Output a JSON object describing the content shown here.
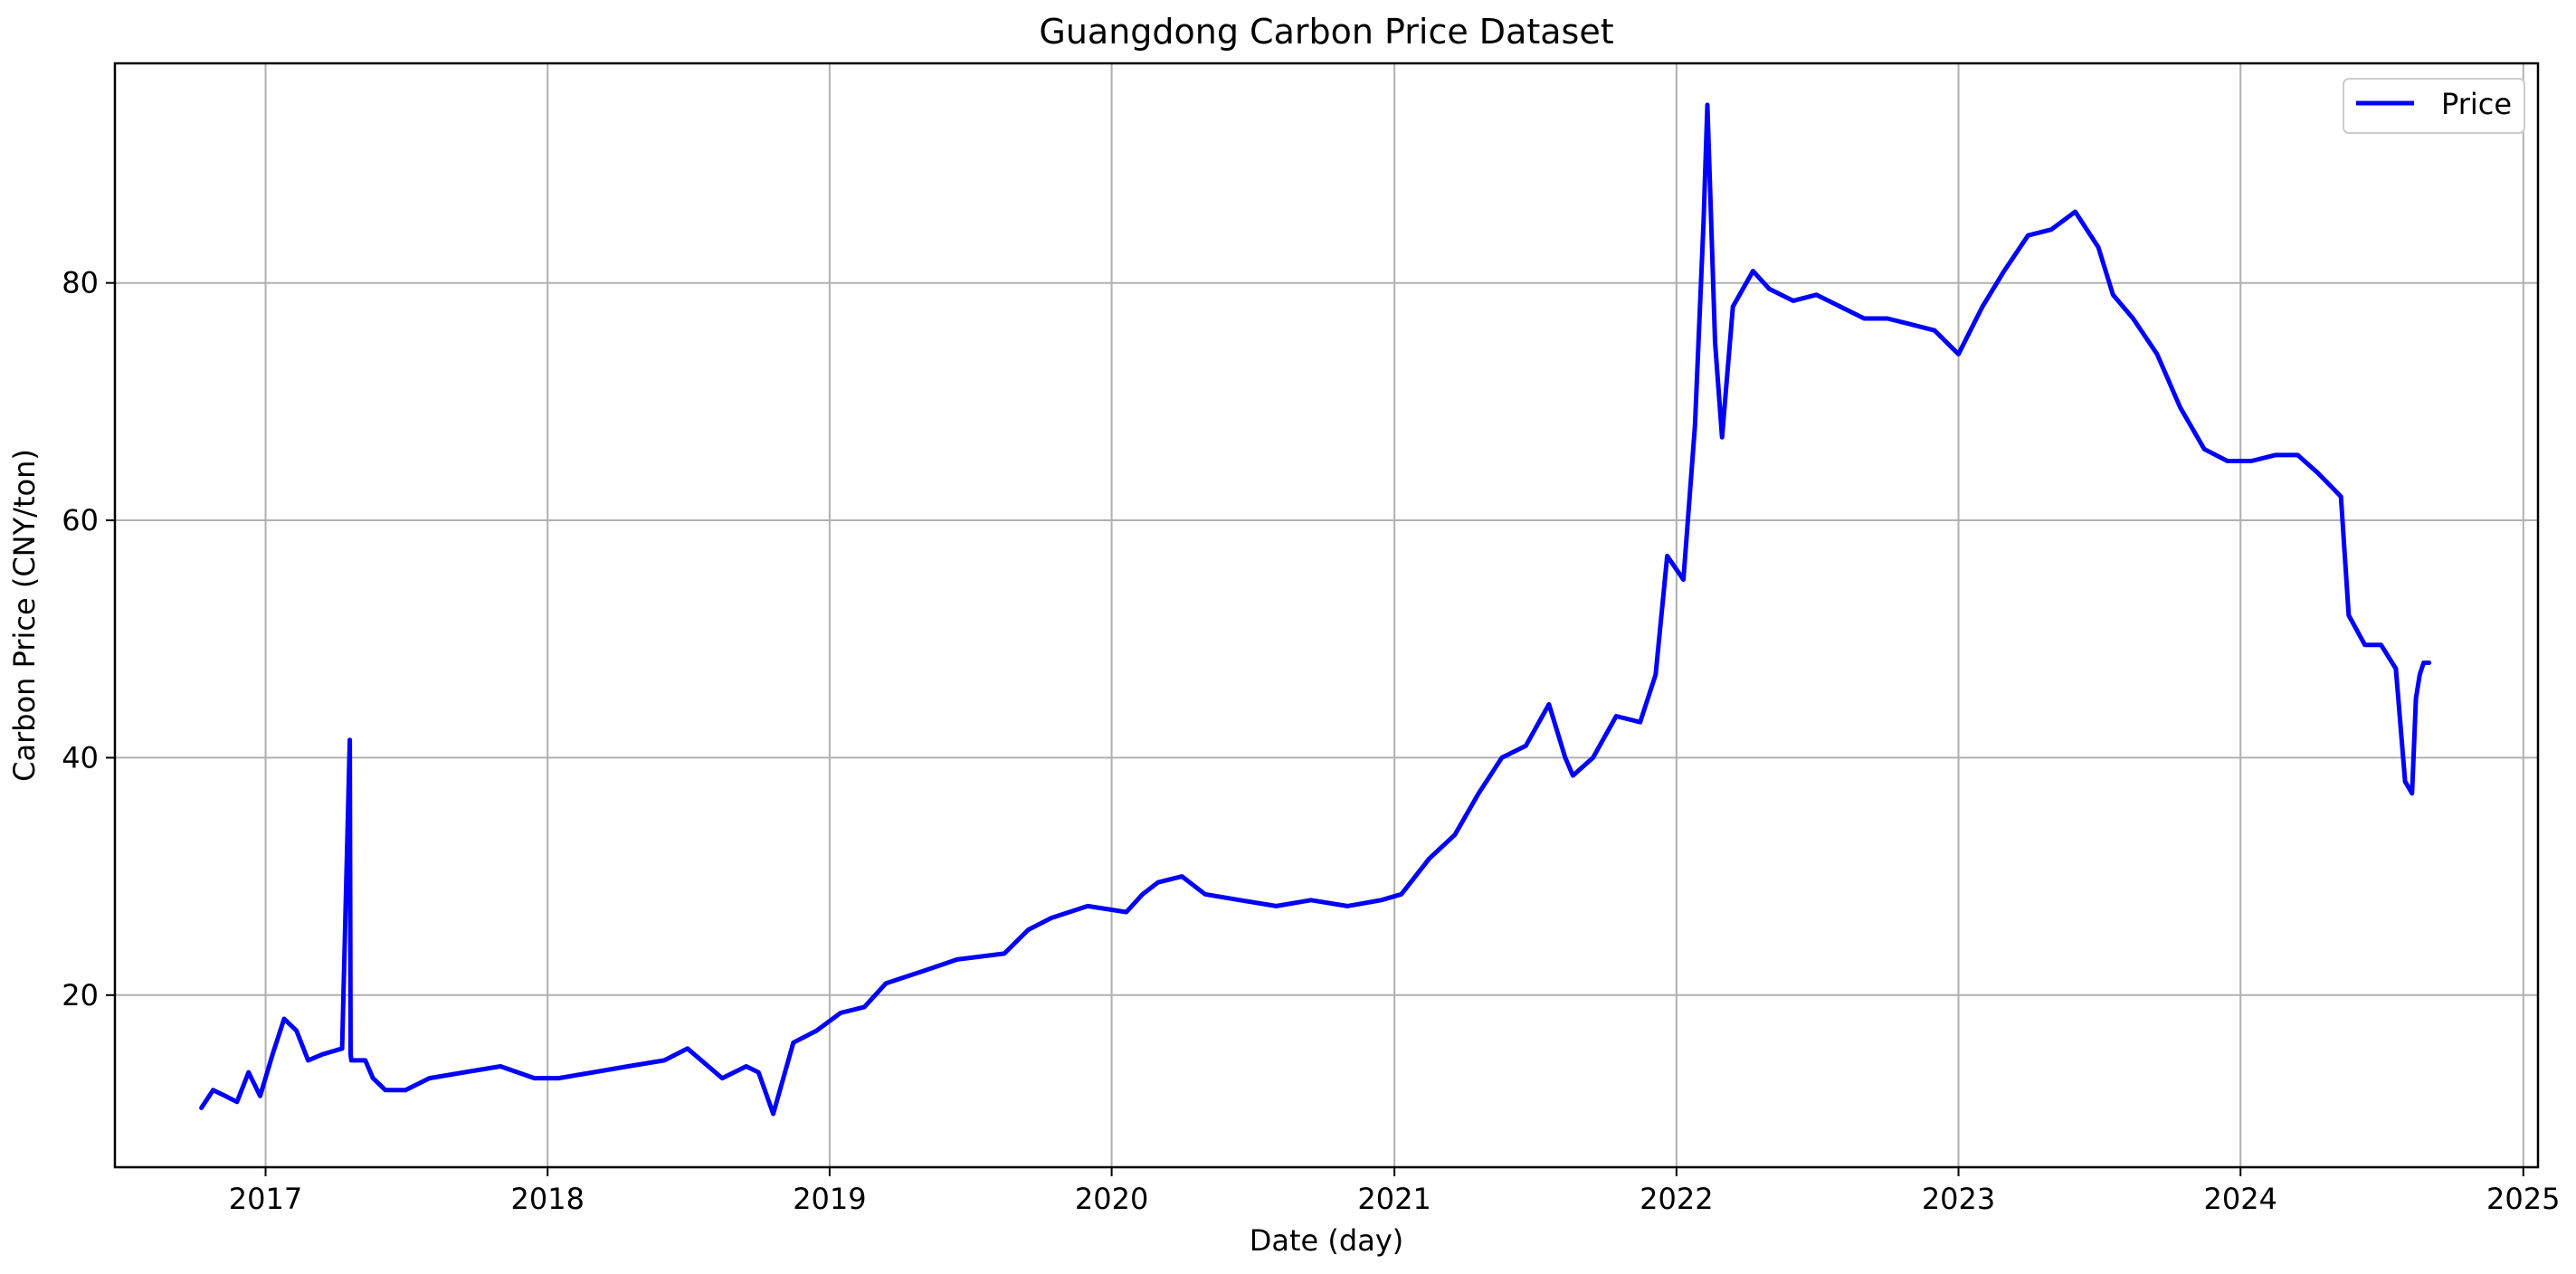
{
  "chart_data": {
    "type": "line",
    "title": "Guangdong Carbon Price Dataset",
    "xlabel": "Date (day)",
    "ylabel": "Carbon Price (CNY/ton)",
    "xlim": [
      "2016-06-20",
      "2025-01-20"
    ],
    "ylim": [
      5.5,
      98.5
    ],
    "x_ticks": [
      "2017",
      "2018",
      "2019",
      "2020",
      "2021",
      "2022",
      "2023",
      "2024",
      "2025"
    ],
    "y_ticks": [
      20,
      40,
      60,
      80
    ],
    "grid": true,
    "legend_position": "top-right",
    "line_color": "#0000ff",
    "series": [
      {
        "name": "Price",
        "x": [
          "2016-10-10",
          "2016-10-25",
          "2016-11-10",
          "2016-11-25",
          "2016-12-10",
          "2016-12-25",
          "2017-01-10",
          "2017-01-25",
          "2017-02-10",
          "2017-02-25",
          "2017-03-15",
          "2017-04-10",
          "2017-04-20",
          "2017-04-21",
          "2017-04-22",
          "2017-05-10",
          "2017-05-20",
          "2017-06-05",
          "2017-07-01",
          "2017-08-01",
          "2017-09-15",
          "2017-11-01",
          "2017-12-15",
          "2018-01-15",
          "2018-03-01",
          "2018-04-15",
          "2018-06-01",
          "2018-07-01",
          "2018-08-15",
          "2018-09-15",
          "2018-10-01",
          "2018-10-20",
          "2018-11-15",
          "2018-12-15",
          "2019-01-15",
          "2019-02-15",
          "2019-03-15",
          "2019-05-01",
          "2019-06-15",
          "2019-08-15",
          "2019-09-15",
          "2019-10-15",
          "2019-12-01",
          "2020-01-20",
          "2020-02-10",
          "2020-03-01",
          "2020-04-01",
          "2020-05-01",
          "2020-06-15",
          "2020-08-01",
          "2020-09-15",
          "2020-11-01",
          "2020-12-15",
          "2021-01-10",
          "2021-02-15",
          "2021-03-20",
          "2021-04-20",
          "2021-05-20",
          "2021-06-20",
          "2021-07-20",
          "2021-08-10",
          "2021-08-20",
          "2021-09-15",
          "2021-10-15",
          "2021-11-15",
          "2021-12-05",
          "2021-12-20",
          "2022-01-10",
          "2022-01-25",
          "2022-02-05",
          "2022-02-10",
          "2022-02-20",
          "2022-03-01",
          "2022-03-15",
          "2022-04-10",
          "2022-05-01",
          "2022-06-01",
          "2022-07-01",
          "2022-08-01",
          "2022-09-01",
          "2022-10-01",
          "2022-11-01",
          "2022-12-01",
          "2023-01-01",
          "2023-02-01",
          "2023-03-01",
          "2023-04-01",
          "2023-05-01",
          "2023-06-01",
          "2023-07-01",
          "2023-07-20",
          "2023-08-15",
          "2023-09-15",
          "2023-10-15",
          "2023-11-15",
          "2023-12-15",
          "2024-01-15",
          "2024-02-15",
          "2024-03-15",
          "2024-04-10",
          "2024-05-10",
          "2024-05-20",
          "2024-06-10",
          "2024-07-01",
          "2024-07-20",
          "2024-08-01",
          "2024-08-10",
          "2024-08-15",
          "2024-08-20",
          "2024-08-25",
          "2024-09-01"
        ],
        "values": [
          10.5,
          12,
          11.5,
          11,
          13.5,
          11.5,
          15,
          18,
          17,
          14.5,
          15,
          15.5,
          41.5,
          15,
          14.5,
          14.5,
          13,
          12,
          12,
          13,
          13.5,
          14,
          13,
          13,
          13.5,
          14,
          14.5,
          15.5,
          13,
          14,
          13.5,
          10,
          16,
          17,
          18.5,
          19,
          21,
          22,
          23,
          23.5,
          25.5,
          26.5,
          27.5,
          27,
          28.5,
          29.5,
          30,
          28.5,
          28,
          27.5,
          28,
          27.5,
          28,
          28.5,
          31.5,
          33.5,
          37,
          40,
          41,
          44.5,
          40,
          38.5,
          40,
          43.5,
          43,
          47,
          57,
          55,
          68,
          85,
          95,
          75,
          67,
          78,
          81,
          79.5,
          78.5,
          79,
          78,
          77,
          77,
          76.5,
          76,
          74,
          78,
          81,
          84,
          84.5,
          86,
          83,
          79,
          77,
          74,
          69.5,
          66,
          65,
          65,
          65.5,
          65.5,
          64,
          62,
          52,
          49.5,
          49.5,
          47.5,
          38,
          37,
          45,
          47,
          48,
          48
        ]
      }
    ]
  }
}
